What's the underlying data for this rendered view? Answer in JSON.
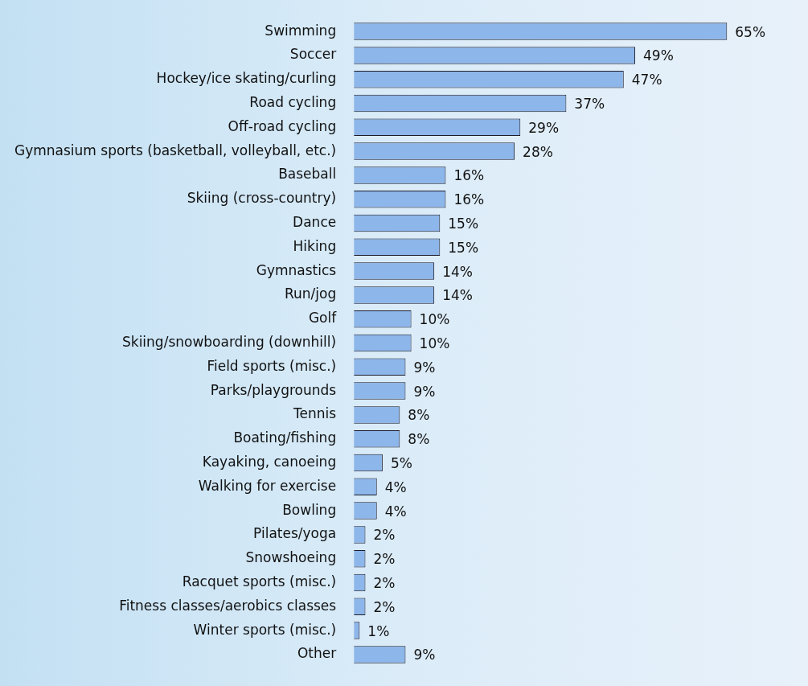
{
  "chart_data": {
    "type": "bar",
    "orientation": "horizontal",
    "color": "#8db6ea",
    "legend": false,
    "tick_labels": "y",
    "categories": [
      "Swimming",
      "Soccer",
      "Hockey/ice skating/curling",
      "Road cycling",
      "Off-road cycling",
      "Gymnasium sports (basketball, volleyball, etc.)",
      "Baseball",
      "Skiing (cross-country)",
      "Dance",
      "Hiking",
      "Gymnastics",
      "Run/jog",
      "Golf",
      "Skiing/snowboarding (downhill)",
      "Field sports (misc.)",
      "Parks/playgrounds",
      "Tennis",
      "Boating/fishing",
      "Kayaking, canoeing",
      "Walking for exercise",
      "Bowling",
      "Pilates/yoga",
      "Snowshoeing",
      "Racquet sports (misc.)",
      "Fitness classes/aerobics classes",
      "Winter sports (misc.)",
      "Other"
    ],
    "values": [
      65,
      49,
      47,
      37,
      29,
      28,
      16,
      16,
      15,
      15,
      14,
      14,
      10,
      10,
      9,
      9,
      8,
      8,
      5,
      4,
      4,
      2,
      2,
      2,
      2,
      1,
      9
    ],
    "value_labels": [
      "65%",
      "49%",
      "47%",
      "37%",
      "29%",
      "28%",
      "16%",
      "16%",
      "15%",
      "15%",
      "14%",
      "14%",
      "10%",
      "10%",
      "9%",
      "9%",
      "8%",
      "8%",
      "5%",
      "4%",
      "4%",
      "2%",
      "2%",
      "2%",
      "2%",
      "1%",
      "9%"
    ]
  }
}
